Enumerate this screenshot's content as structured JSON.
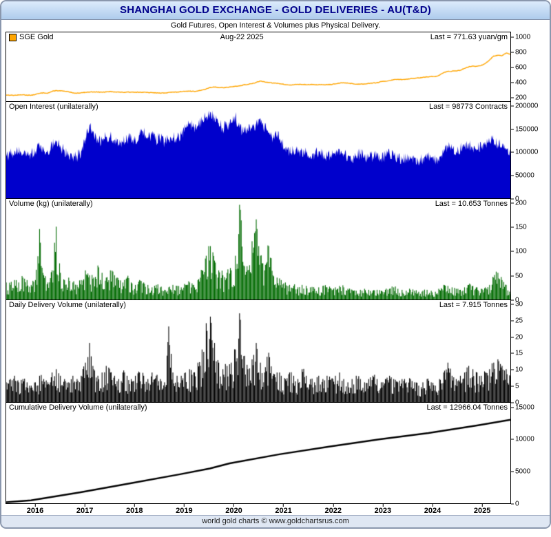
{
  "title": "SHANGHAI GOLD EXCHANGE - GOLD DELIVERIES - AU(T&D)",
  "subtitle": "Gold Futures, Open Interest & Volumes plus Physical Delivery.",
  "footer": "world gold charts © www.goldchartsrus.com",
  "x_axis": {
    "start": 2015.5,
    "end": 2025.65,
    "ticks": [
      2016,
      2017,
      2018,
      2019,
      2020,
      2021,
      2022,
      2023,
      2024,
      2025
    ]
  },
  "chart_data": [
    {
      "type": "line",
      "name": "SGE Gold price",
      "header": {
        "legend": "SGE Gold",
        "date": "Aug-22  2025",
        "last": "Last = 771.63 yuan/gm"
      },
      "color": "#FFA500",
      "ylim": [
        150,
        1060
      ],
      "yticks": [
        200,
        400,
        600,
        800,
        1000
      ],
      "ylabel": "yuan/gm",
      "last_value": 771.63,
      "render": {
        "upsample": 6,
        "noise": 4,
        "line_width": 1.4
      },
      "values": [
        232,
        230,
        228,
        232,
        236,
        230,
        228,
        240,
        253,
        261,
        257,
        279,
        291,
        287,
        282,
        274,
        259,
        257,
        262,
        267,
        272,
        274,
        271,
        269,
        272,
        277,
        273,
        271,
        267,
        269,
        271,
        270,
        269,
        267,
        265,
        263,
        261,
        257,
        259,
        267,
        269,
        271,
        274,
        281,
        283,
        281,
        284,
        299,
        312,
        332,
        336,
        331,
        329,
        333,
        341,
        347,
        352,
        366,
        372,
        382,
        398,
        416,
        406,
        399,
        389,
        387,
        379,
        369,
        364,
        367,
        374,
        371,
        369,
        371,
        367,
        369,
        367,
        369,
        371,
        379,
        389,
        394,
        389,
        384,
        374,
        377,
        379,
        387,
        391,
        394,
        409,
        414,
        424,
        434,
        439,
        437,
        441,
        447,
        454,
        457,
        464,
        471,
        477,
        474,
        494,
        529,
        544,
        547,
        551,
        559,
        584,
        604,
        614,
        611,
        622,
        650,
        695,
        748,
        758,
        752,
        788,
        772
      ]
    },
    {
      "type": "area",
      "name": "Open Interest",
      "header": {
        "label": "Open Interest (unilaterally)",
        "last": "Last = 98773 Contracts"
      },
      "color": "#0000CC",
      "ylim": [
        0,
        207000
      ],
      "yticks": [
        0,
        50000,
        100000,
        150000,
        200000
      ],
      "ylabel": "Contracts",
      "last_value": 98773,
      "render": {
        "upsample": 8,
        "noise": 13000
      },
      "values": [
        90000,
        95000,
        100000,
        98000,
        96000,
        94000,
        95000,
        102000,
        112000,
        106000,
        99000,
        116000,
        121000,
        111000,
        101000,
        96000,
        91000,
        89000,
        101000,
        132000,
        157000,
        141000,
        121000,
        126000,
        131000,
        136000,
        126000,
        116000,
        121000,
        126000,
        131000,
        126000,
        136000,
        141000,
        131000,
        136000,
        126000,
        131000,
        121000,
        126000,
        131000,
        129000,
        136000,
        151000,
        161000,
        151000,
        156000,
        166000,
        176000,
        186000,
        171000,
        161000,
        151000,
        156000,
        161000,
        176000,
        151000,
        141000,
        146000,
        151000,
        161000,
        171000,
        151000,
        141000,
        131000,
        136000,
        121000,
        111000,
        101000,
        106000,
        96000,
        101000,
        96000,
        91000,
        96000,
        101000,
        96000,
        91000,
        96000,
        101000,
        106000,
        96000,
        91000,
        86000,
        91000,
        96000,
        91000,
        86000,
        91000,
        89000,
        86000,
        91000,
        96000,
        91000,
        86000,
        81000,
        86000,
        91000,
        86000,
        81000,
        86000,
        91000,
        86000,
        81000,
        91000,
        101000,
        111000,
        106000,
        101000,
        106000,
        111000,
        116000,
        111000,
        106000,
        111000,
        116000,
        121000,
        126000,
        116000,
        111000,
        103000,
        98773
      ]
    },
    {
      "type": "bar",
      "name": "Volume (kg)",
      "header": {
        "label": "Volume (kg) (unilaterally)",
        "last": "Last = 10.653 Tonnes"
      },
      "color": "#006B00",
      "ylim": [
        0,
        207
      ],
      "yticks": [
        0,
        50,
        100,
        150,
        200
      ],
      "ylabel": "Tonnes",
      "last_value": 10.653,
      "render": {
        "upsample": 5,
        "bar_min": 0.3,
        "bar_rand": 0.85
      },
      "values": [
        35,
        30,
        40,
        35,
        45,
        40,
        30,
        40,
        145,
        50,
        35,
        60,
        150,
        55,
        40,
        45,
        35,
        30,
        40,
        60,
        50,
        45,
        70,
        55,
        45,
        60,
        50,
        40,
        35,
        45,
        35,
        30,
        40,
        35,
        30,
        25,
        30,
        25,
        20,
        25,
        30,
        28,
        25,
        30,
        35,
        30,
        40,
        60,
        90,
        110,
        80,
        60,
        50,
        55,
        60,
        90,
        195,
        70,
        60,
        120,
        165,
        90,
        60,
        110,
        50,
        45,
        40,
        35,
        30,
        28,
        25,
        30,
        28,
        25,
        22,
        25,
        28,
        25,
        22,
        25,
        28,
        25,
        22,
        20,
        18,
        20,
        22,
        20,
        18,
        20,
        18,
        20,
        22,
        25,
        22,
        20,
        18,
        20,
        18,
        16,
        18,
        20,
        18,
        16,
        20,
        30,
        28,
        25,
        22,
        20,
        25,
        30,
        28,
        25,
        22,
        25,
        30,
        45,
        55,
        40,
        30,
        11
      ]
    },
    {
      "type": "bar",
      "name": "Daily Delivery Volume",
      "header": {
        "label": "Daily Delivery Volume (unilaterally)",
        "last": "Last = 7.915 Tonnes"
      },
      "color": "#000000",
      "ylim": [
        0,
        31
      ],
      "yticks": [
        0,
        5,
        10,
        15,
        20,
        25,
        30
      ],
      "ylabel": "Tonnes",
      "last_value": 7.915,
      "render": {
        "upsample": 5,
        "bar_min": 0.3,
        "bar_rand": 0.8
      },
      "values": [
        6,
        7,
        8,
        6,
        7,
        6,
        5,
        6,
        8,
        7,
        6,
        9,
        10,
        8,
        7,
        6,
        8,
        7,
        8,
        12,
        18,
        10,
        8,
        9,
        11,
        9,
        8,
        7,
        9,
        8,
        7,
        8,
        9,
        8,
        7,
        9,
        8,
        7,
        6,
        23,
        9,
        8,
        8,
        9,
        10,
        9,
        12,
        16,
        24,
        26,
        18,
        12,
        10,
        11,
        12,
        16,
        27,
        14,
        10,
        13,
        18,
        12,
        9,
        15,
        8,
        9,
        8,
        7,
        9,
        8,
        7,
        10,
        8,
        7,
        6,
        8,
        7,
        8,
        7,
        8,
        9,
        7,
        6,
        7,
        8,
        7,
        6,
        7,
        8,
        7,
        6,
        7,
        8,
        7,
        6,
        7,
        6,
        7,
        6,
        5,
        6,
        7,
        6,
        5,
        7,
        9,
        12,
        8,
        7,
        8,
        9,
        11,
        10,
        9,
        8,
        9,
        10,
        12,
        13,
        11,
        10,
        7.9
      ]
    },
    {
      "type": "line",
      "name": "Cumulative Delivery Volume",
      "header": {
        "label": "Cumulative Delivery Volume (unilaterally)",
        "last": "Last = 12966.04 Tonnes"
      },
      "color": "#000000",
      "ylim": [
        0,
        15600
      ],
      "yticks": [
        0,
        5000,
        10000,
        15000
      ],
      "ylabel": "Tonnes",
      "last_value": 12966.04,
      "render": {
        "line_width": 2.5
      },
      "x": [
        2015.5,
        2016,
        2017,
        2018,
        2019,
        2019.6,
        2020,
        2021,
        2022,
        2023,
        2024,
        2025,
        2025.65
      ],
      "y": [
        150,
        450,
        1700,
        3100,
        4500,
        5400,
        6200,
        7600,
        8800,
        9900,
        10900,
        12100,
        12966
      ]
    }
  ]
}
